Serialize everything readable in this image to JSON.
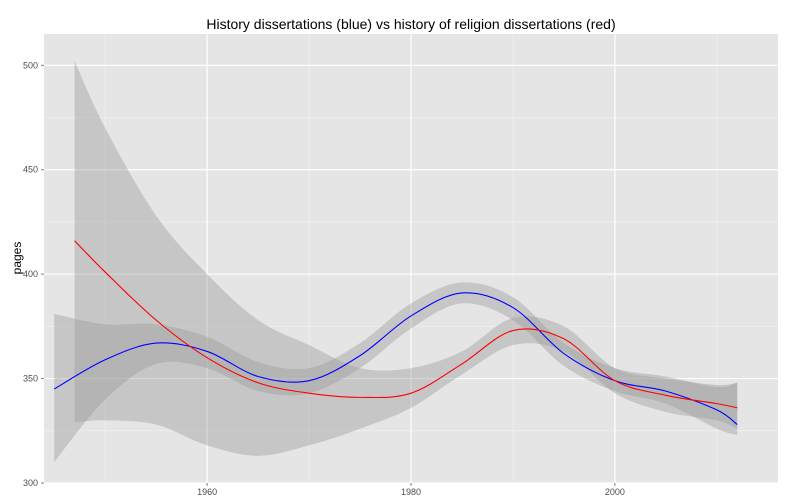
{
  "chart_data": {
    "type": "line",
    "title": "History dissertations (blue) vs history of religion dissertations (red)",
    "xlabel": "",
    "ylabel": "pages",
    "xlim": [
      1944,
      2016
    ],
    "ylim": [
      300,
      515
    ],
    "x_ticks": [
      1960,
      1980,
      2000
    ],
    "y_ticks": [
      300,
      350,
      400,
      450,
      500
    ],
    "grid": true,
    "legend": "none",
    "colors": {
      "panel_background": "#e5e5e5",
      "grid_major": "#ffffff",
      "grid_minor": "#f2f2f2",
      "ribbon": "#999999"
    },
    "series": [
      {
        "color": "#0000ff",
        "x": [
          1945,
          1950,
          1955,
          1960,
          1965,
          1970,
          1975,
          1980,
          1985,
          1990,
          1995,
          2000,
          2005,
          2010,
          2012
        ],
        "y": [
          345,
          359,
          367,
          363,
          351,
          349,
          361,
          380,
          391,
          384,
          362,
          349,
          344,
          335,
          328
        ],
        "lower": [
          310,
          340,
          357,
          355,
          344,
          343,
          355,
          374,
          386,
          378,
          356,
          344,
          338,
          326,
          323
        ],
        "upper": [
          381,
          376,
          376,
          370,
          358,
          355,
          367,
          386,
          396,
          389,
          367,
          355,
          351,
          346,
          348
        ]
      },
      {
        "color": "#ff0000",
        "x": [
          1947,
          1950,
          1955,
          1960,
          1965,
          1970,
          1975,
          1980,
          1985,
          1990,
          1995,
          2000,
          2005,
          2010,
          2012
        ],
        "y": [
          416,
          401,
          378,
          360,
          348,
          343,
          341,
          343,
          357,
          373,
          369,
          349,
          342,
          338,
          336
        ],
        "lower": [
          329,
          330,
          328,
          318,
          313,
          318,
          326,
          336,
          352,
          366,
          363,
          343,
          334,
          330,
          326
        ],
        "upper": [
          502,
          470,
          428,
          400,
          378,
          366,
          355,
          355,
          363,
          379,
          375,
          355,
          350,
          347,
          348
        ]
      }
    ]
  }
}
